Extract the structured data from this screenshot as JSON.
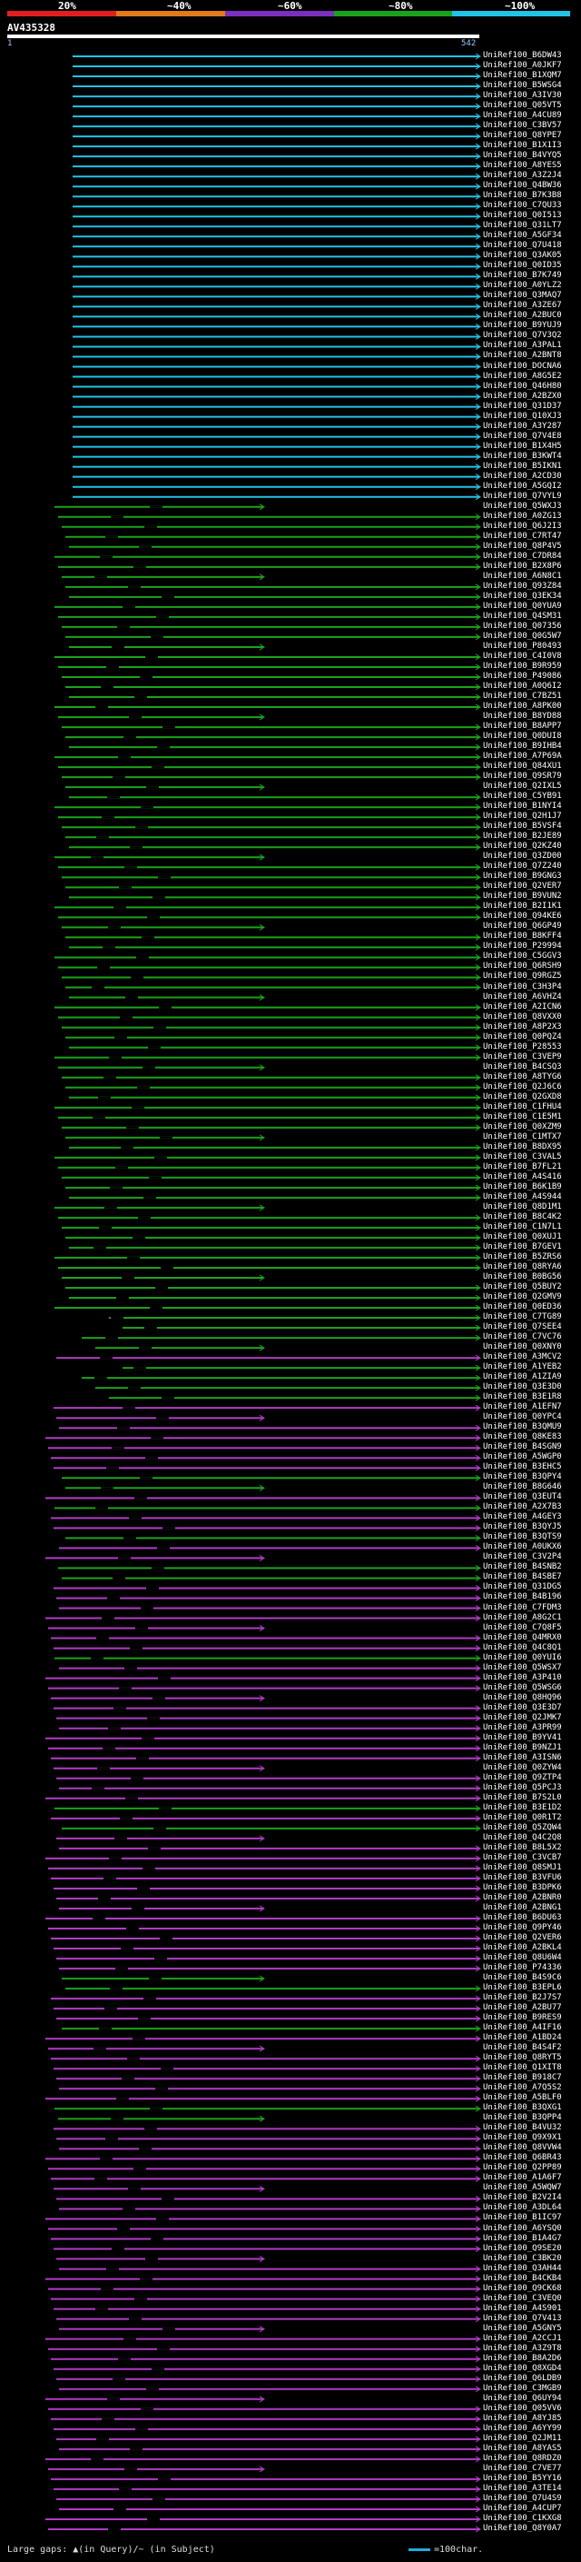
{
  "scale": {
    "ticks": [
      "20%",
      "~40%",
      "~60%",
      "~80%",
      "~100%"
    ],
    "colors": [
      "#e0201f",
      "#e07a1c",
      "#7b2fbf",
      "#1aa31a",
      "#22c3e6"
    ]
  },
  "query": {
    "name": "AV435328",
    "start": "1",
    "end": "542"
  },
  "footer": {
    "gaps_label": "Large gaps: ▲(in Query)/~ (in Subject)",
    "scale_label": "=100char."
  },
  "hits": [
    {
      "id": "UniRef100_B6DW43",
      "color": "cyan"
    },
    {
      "id": "UniRef100_A0JKF7",
      "color": "cyan"
    },
    {
      "id": "UniRef100_B1XQM7",
      "color": "cyan"
    },
    {
      "id": "UniRef100_B5WSG4",
      "color": "cyan"
    },
    {
      "id": "UniRef100_A3IV30",
      "color": "cyan"
    },
    {
      "id": "UniRef100_Q05VT5",
      "color": "cyan"
    },
    {
      "id": "UniRef100_A4CU89",
      "color": "cyan"
    },
    {
      "id": "UniRef100_C3BV57",
      "color": "cyan"
    },
    {
      "id": "UniRef100_Q8YPE7",
      "color": "cyan"
    },
    {
      "id": "UniRef100_B1X1I3",
      "color": "cyan"
    },
    {
      "id": "UniRef100_B4VYQ5",
      "color": "cyan"
    },
    {
      "id": "UniRef100_A8YES5",
      "color": "cyan"
    },
    {
      "id": "UniRef100_A3Z2J4",
      "color": "cyan"
    },
    {
      "id": "UniRef100_Q4BW36",
      "color": "cyan"
    },
    {
      "id": "UniRef100_B7K3B8",
      "color": "cyan"
    },
    {
      "id": "UniRef100_C7QU33",
      "color": "cyan"
    },
    {
      "id": "UniRef100_Q0I513",
      "color": "cyan"
    },
    {
      "id": "UniRef100_Q31LT7",
      "color": "cyan"
    },
    {
      "id": "UniRef100_A5GF34",
      "color": "cyan"
    },
    {
      "id": "UniRef100_Q7U418",
      "color": "cyan"
    },
    {
      "id": "UniRef100_Q3AK05",
      "color": "cyan"
    },
    {
      "id": "UniRef100_Q0ID35",
      "color": "cyan"
    },
    {
      "id": "UniRef100_B7K749",
      "color": "cyan"
    },
    {
      "id": "UniRef100_A0YLZ2",
      "color": "cyan"
    },
    {
      "id": "UniRef100_Q3MAQ7",
      "color": "cyan"
    },
    {
      "id": "UniRef100_A3ZE67",
      "color": "cyan"
    },
    {
      "id": "UniRef100_A2BUC0",
      "color": "cyan"
    },
    {
      "id": "UniRef100_B9YUJ9",
      "color": "cyan"
    },
    {
      "id": "UniRef100_Q7V3Q2",
      "color": "cyan"
    },
    {
      "id": "UniRef100_A3PAL1",
      "color": "cyan"
    },
    {
      "id": "UniRef100_A2BNT8",
      "color": "cyan"
    },
    {
      "id": "UniRef100_DOCNA6",
      "color": "cyan"
    },
    {
      "id": "UniRef100_A8G5E2",
      "color": "cyan"
    },
    {
      "id": "UniRef100_Q46H80",
      "color": "cyan"
    },
    {
      "id": "UniRef100_A2BZX0",
      "color": "cyan"
    },
    {
      "id": "UniRef100_Q31D37",
      "color": "cyan"
    },
    {
      "id": "UniRef100_Q10XJ3",
      "color": "cyan"
    },
    {
      "id": "UniRef100_A3Y287",
      "color": "cyan"
    },
    {
      "id": "UniRef100_Q7V4E8",
      "color": "cyan"
    },
    {
      "id": "UniRef100_B1X4H5",
      "color": "cyan"
    },
    {
      "id": "UniRef100_B3KWT4",
      "color": "cyan"
    },
    {
      "id": "UniRef100_B5IKN1",
      "color": "cyan"
    },
    {
      "id": "UniRef100_A2CD30",
      "color": "cyan"
    },
    {
      "id": "UniRef100_A5GQI2",
      "color": "cyan"
    },
    {
      "id": "UniRef100_Q7VYL9",
      "color": "cyan"
    },
    {
      "id": "UniRef100_Q5WXJ3",
      "color": "green"
    },
    {
      "id": "UniRef100_A0ZG13",
      "color": "green"
    },
    {
      "id": "UniRef100_Q6J2I3",
      "color": "green"
    },
    {
      "id": "UniRef100_C7RT47",
      "color": "green"
    },
    {
      "id": "UniRef100_Q8P4V5",
      "color": "green"
    },
    {
      "id": "UniRef100_C7DR84",
      "color": "green"
    },
    {
      "id": "UniRef100_B2X8P6",
      "color": "green"
    },
    {
      "id": "UniRef100_A6N8C1",
      "color": "green"
    },
    {
      "id": "UniRef100_Q93Z84",
      "color": "green"
    },
    {
      "id": "UniRef100_Q3EK34",
      "color": "green"
    },
    {
      "id": "UniRef100_Q0YUA9",
      "color": "green"
    },
    {
      "id": "UniRef100_Q4SM31",
      "color": "green"
    },
    {
      "id": "UniRef100_Q07356",
      "color": "green"
    },
    {
      "id": "UniRef100_Q0G5W7",
      "color": "green"
    },
    {
      "id": "UniRef100_P80493",
      "color": "green"
    },
    {
      "id": "UniRef100_C4I0V8",
      "color": "green"
    },
    {
      "id": "UniRef100_B9R959",
      "color": "green"
    },
    {
      "id": "UniRef100_P49086",
      "color": "green"
    },
    {
      "id": "UniRef100_A0Q6I2",
      "color": "green"
    },
    {
      "id": "UniRef100_C7BZ51",
      "color": "green"
    },
    {
      "id": "UniRef100_A8PK00",
      "color": "green"
    },
    {
      "id": "UniRef100_B8YD88",
      "color": "green"
    },
    {
      "id": "UniRef100_B8APP7",
      "color": "green"
    },
    {
      "id": "UniRef100_Q0DUI8",
      "color": "green"
    },
    {
      "id": "UniRef100_B9IHB4",
      "color": "green"
    },
    {
      "id": "UniRef100_A7P69A",
      "color": "green"
    },
    {
      "id": "UniRef100_Q84XU1",
      "color": "green"
    },
    {
      "id": "UniRef100_Q9SR79",
      "color": "green"
    },
    {
      "id": "UniRef100_Q2IXL5",
      "color": "green"
    },
    {
      "id": "UniRef100_C5YB91",
      "color": "green"
    },
    {
      "id": "UniRef100_B1NYI4",
      "color": "green"
    },
    {
      "id": "UniRef100_Q2H1J7",
      "color": "green"
    },
    {
      "id": "UniRef100_B5VSF4",
      "color": "green"
    },
    {
      "id": "UniRef100_B2JE89",
      "color": "green"
    },
    {
      "id": "UniRef100_Q2KZ40",
      "color": "green"
    },
    {
      "id": "UniRef100_Q3ZD00",
      "color": "green"
    },
    {
      "id": "UniRef100_Q7Z240",
      "color": "green"
    },
    {
      "id": "UniRef100_B9GNG3",
      "color": "green"
    },
    {
      "id": "UniRef100_Q2VER7",
      "color": "green"
    },
    {
      "id": "UniRef100_B9VUN2",
      "color": "green"
    },
    {
      "id": "UniRef100_B2I1K1",
      "color": "green"
    },
    {
      "id": "UniRef100_Q94KE6",
      "color": "green"
    },
    {
      "id": "UniRef100_Q6GP49",
      "color": "green"
    },
    {
      "id": "UniRef100_B8KFF4",
      "color": "green"
    },
    {
      "id": "UniRef100_P29994",
      "color": "green"
    },
    {
      "id": "UniRef100_C5GGV3",
      "color": "green"
    },
    {
      "id": "UniRef100_Q6RSH9",
      "color": "green"
    },
    {
      "id": "UniRef100_Q9RGZ5",
      "color": "green"
    },
    {
      "id": "UniRef100_C3H3P4",
      "color": "green"
    },
    {
      "id": "UniRef100_A6VHZ4",
      "color": "green"
    },
    {
      "id": "UniRef100_A2ICN6",
      "color": "green"
    },
    {
      "id": "UniRef100_Q8VXX0",
      "color": "green"
    },
    {
      "id": "UniRef100_A8P2X3",
      "color": "green"
    },
    {
      "id": "UniRef100_Q0PQZ4",
      "color": "green"
    },
    {
      "id": "UniRef100_P28553",
      "color": "green"
    },
    {
      "id": "UniRef100_C3VEP9",
      "color": "green"
    },
    {
      "id": "UniRef100_B4CSQ3",
      "color": "green"
    },
    {
      "id": "UniRef100_A8TYG6",
      "color": "green"
    },
    {
      "id": "UniRef100_Q2J6C6",
      "color": "green"
    },
    {
      "id": "UniRef100_Q2GXD8",
      "color": "green"
    },
    {
      "id": "UniRef100_C1FHU4",
      "color": "green"
    },
    {
      "id": "UniRef100_C1E5M1",
      "color": "green"
    },
    {
      "id": "UniRef100_Q0XZM9",
      "color": "green"
    },
    {
      "id": "UniRef100_C1MTX7",
      "color": "green"
    },
    {
      "id": "UniRef100_B8DX95",
      "color": "green"
    },
    {
      "id": "UniRef100_C3VAL5",
      "color": "green"
    },
    {
      "id": "UniRef100_B7FL21",
      "color": "green"
    },
    {
      "id": "UniRef100_A4S416",
      "color": "green"
    },
    {
      "id": "UniRef100_B6K1B9",
      "color": "green"
    },
    {
      "id": "UniRef100_A4S944",
      "color": "green"
    },
    {
      "id": "UniRef100_Q8D1M1",
      "color": "green"
    },
    {
      "id": "UniRef100_B8C4K2",
      "color": "green"
    },
    {
      "id": "UniRef100_C1N7L1",
      "color": "green"
    },
    {
      "id": "UniRef100_Q0XUJ1",
      "color": "green"
    },
    {
      "id": "UniRef100_B7GEV1",
      "color": "green"
    },
    {
      "id": "UniRef100_B5ZRS6",
      "color": "green"
    },
    {
      "id": "UniRef100_Q8RYA6",
      "color": "green"
    },
    {
      "id": "UniRef100_B0BG56",
      "color": "green"
    },
    {
      "id": "UniRef100_Q5BUY2",
      "color": "green"
    },
    {
      "id": "UniRef100_Q2GMV9",
      "color": "green"
    },
    {
      "id": "UniRef100_Q0ED36",
      "color": "green"
    },
    {
      "id": "UniRef100_C7TG89",
      "color": "green"
    },
    {
      "id": "UniRef100_Q7SEE4",
      "color": "green"
    },
    {
      "id": "UniRef100_C7VC76",
      "color": "green"
    },
    {
      "id": "UniRef100_Q0XNY0",
      "color": "green"
    },
    {
      "id": "UniRef100_A3MCV2",
      "color": "magenta"
    },
    {
      "id": "UniRef100_A1YEB2",
      "color": "green"
    },
    {
      "id": "UniRef100_A1ZIA9",
      "color": "green"
    },
    {
      "id": "UniRef100_Q3E3D0",
      "color": "green"
    },
    {
      "id": "UniRef100_B3E1R8",
      "color": "green"
    },
    {
      "id": "UniRef100_A1EFN7",
      "color": "magenta"
    },
    {
      "id": "UniRef100_Q0YPC4",
      "color": "magenta"
    },
    {
      "id": "UniRef100_B3QMU9",
      "color": "magenta"
    },
    {
      "id": "UniRef100_Q8KE83",
      "color": "magenta"
    },
    {
      "id": "UniRef100_B4SGN9",
      "color": "magenta"
    },
    {
      "id": "UniRef100_A5WGP0",
      "color": "magenta"
    },
    {
      "id": "UniRef100_B3EHC5",
      "color": "magenta"
    },
    {
      "id": "UniRef100_B3QPY4",
      "color": "green"
    },
    {
      "id": "UniRef100_B8G646",
      "color": "green"
    },
    {
      "id": "UniRef100_Q3EUT4",
      "color": "magenta"
    },
    {
      "id": "UniRef100_A2X7B3",
      "color": "green"
    },
    {
      "id": "UniRef100_A4GEY3",
      "color": "magenta"
    },
    {
      "id": "UniRef100_B3QYJ5",
      "color": "magenta"
    },
    {
      "id": "UniRef100_B3QTS9",
      "color": "green"
    },
    {
      "id": "UniRef100_A0UKX6",
      "color": "magenta"
    },
    {
      "id": "UniRef100_C3V2P4",
      "color": "magenta"
    },
    {
      "id": "UniRef100_B4SNB2",
      "color": "green"
    },
    {
      "id": "UniRef100_B4SBE7",
      "color": "green"
    },
    {
      "id": "UniRef100_Q31DG5",
      "color": "magenta"
    },
    {
      "id": "UniRef100_B4B196",
      "color": "magenta"
    },
    {
      "id": "UniRef100_C7FDM3",
      "color": "magenta"
    },
    {
      "id": "UniRef100_A8G2C1",
      "color": "magenta"
    },
    {
      "id": "UniRef100_C7Q8F5",
      "color": "magenta"
    },
    {
      "id": "UniRef100_Q4MRX0",
      "color": "magenta"
    },
    {
      "id": "UniRef100_Q4C8Q1",
      "color": "magenta"
    },
    {
      "id": "UniRef100_Q0YUI6",
      "color": "green"
    },
    {
      "id": "UniRef100_Q5WSX7",
      "color": "magenta"
    },
    {
      "id": "UniRef100_A3P410",
      "color": "magenta"
    },
    {
      "id": "UniRef100_Q5WSG6",
      "color": "magenta"
    },
    {
      "id": "UniRef100_Q8HQ96",
      "color": "magenta"
    },
    {
      "id": "UniRef100_Q3E3D7",
      "color": "magenta"
    },
    {
      "id": "UniRef100_Q2JMK7",
      "color": "magenta"
    },
    {
      "id": "UniRef100_A3PR99",
      "color": "magenta"
    },
    {
      "id": "UniRef100_B9YV41",
      "color": "magenta"
    },
    {
      "id": "UniRef100_B9NZJ1",
      "color": "magenta"
    },
    {
      "id": "UniRef100_A3ISN6",
      "color": "magenta"
    },
    {
      "id": "UniRef100_Q0ZYW4",
      "color": "magenta"
    },
    {
      "id": "UniRef100_Q9ZTP4",
      "color": "magenta"
    },
    {
      "id": "UniRef100_Q5PCJ3",
      "color": "magenta"
    },
    {
      "id": "UniRef100_B7S2L0",
      "color": "magenta"
    },
    {
      "id": "UniRef100_B3E1D2",
      "color": "green"
    },
    {
      "id": "UniRef100_Q0R1T2",
      "color": "magenta"
    },
    {
      "id": "UniRef100_Q5ZQW4",
      "color": "green"
    },
    {
      "id": "UniRef100_Q4C2Q8",
      "color": "magenta"
    },
    {
      "id": "UniRef100_B8L5X2",
      "color": "magenta"
    },
    {
      "id": "UniRef100_C3VCB7",
      "color": "magenta"
    },
    {
      "id": "UniRef100_Q8SMJ1",
      "color": "magenta"
    },
    {
      "id": "UniRef100_B3VFU6",
      "color": "magenta"
    },
    {
      "id": "UniRef100_B3DPK6",
      "color": "magenta"
    },
    {
      "id": "UniRef100_A2BNR0",
      "color": "magenta"
    },
    {
      "id": "UniRef100_A2BNG1",
      "color": "magenta"
    },
    {
      "id": "UniRef100_B6DU63",
      "color": "magenta"
    },
    {
      "id": "UniRef100_Q9PY46",
      "color": "magenta"
    },
    {
      "id": "UniRef100_Q2VER6",
      "color": "magenta"
    },
    {
      "id": "UniRef100_A2BKL4",
      "color": "magenta"
    },
    {
      "id": "UniRef100_Q8U6W4",
      "color": "magenta"
    },
    {
      "id": "UniRef100_P74336",
      "color": "magenta"
    },
    {
      "id": "UniRef100_B4S9C6",
      "color": "green"
    },
    {
      "id": "UniRef100_B3EPL6",
      "color": "green"
    },
    {
      "id": "UniRef100_B2J7S7",
      "color": "magenta"
    },
    {
      "id": "UniRef100_A2BU77",
      "color": "magenta"
    },
    {
      "id": "UniRef100_B9RES9",
      "color": "magenta"
    },
    {
      "id": "UniRef100_A4IF16",
      "color": "green"
    },
    {
      "id": "UniRef100_A1BD24",
      "color": "magenta"
    },
    {
      "id": "UniRef100_B4S4F2",
      "color": "magenta"
    },
    {
      "id": "UniRef100_Q8RYT5",
      "color": "magenta"
    },
    {
      "id": "UniRef100_Q1XIT8",
      "color": "magenta"
    },
    {
      "id": "UniRef100_B918C7",
      "color": "magenta"
    },
    {
      "id": "UniRef100_A7Q5S2",
      "color": "magenta"
    },
    {
      "id": "UniRef100_A5BLF0",
      "color": "magenta"
    },
    {
      "id": "UniRef100_B3QXG1",
      "color": "green"
    },
    {
      "id": "UniRef100_B3QPP4",
      "color": "green"
    },
    {
      "id": "UniRef100_B4VU32",
      "color": "magenta"
    },
    {
      "id": "UniRef100_Q9X9X1",
      "color": "magenta"
    },
    {
      "id": "UniRef100_Q8VVW4",
      "color": "magenta"
    },
    {
      "id": "UniRef100_Q6BR43",
      "color": "magenta"
    },
    {
      "id": "UniRef100_Q2PP89",
      "color": "magenta"
    },
    {
      "id": "UniRef100_A1A6F7",
      "color": "magenta"
    },
    {
      "id": "UniRef100_A5WQW7",
      "color": "magenta"
    },
    {
      "id": "UniRef100_B2V2I4",
      "color": "magenta"
    },
    {
      "id": "UniRef100_A3DL64",
      "color": "magenta"
    },
    {
      "id": "UniRef100_B1IC97",
      "color": "magenta"
    },
    {
      "id": "UniRef100_A6YSQ0",
      "color": "magenta"
    },
    {
      "id": "UniRef100_B1A4G7",
      "color": "magenta"
    },
    {
      "id": "UniRef100_Q9SE20",
      "color": "magenta"
    },
    {
      "id": "UniRef100_C3BK20",
      "color": "magenta"
    },
    {
      "id": "UniRef100_Q3AH44",
      "color": "magenta"
    },
    {
      "id": "UniRef100_B4CKB4",
      "color": "magenta"
    },
    {
      "id": "UniRef100_Q9CK68",
      "color": "magenta"
    },
    {
      "id": "UniRef100_C3VEQ0",
      "color": "magenta"
    },
    {
      "id": "UniRef100_A4S901",
      "color": "magenta"
    },
    {
      "id": "UniRef100_Q7V413",
      "color": "magenta"
    },
    {
      "id": "UniRef100_A5GNY5",
      "color": "magenta"
    },
    {
      "id": "UniRef100_A2CCJ1",
      "color": "magenta"
    },
    {
      "id": "UniRef100_A3Z9T8",
      "color": "magenta"
    },
    {
      "id": "UniRef100_B8A2D6",
      "color": "magenta"
    },
    {
      "id": "UniRef100_Q8XGD4",
      "color": "magenta"
    },
    {
      "id": "UniRef100_Q6LDB9",
      "color": "magenta"
    },
    {
      "id": "UniRef100_C3MGB9",
      "color": "magenta"
    },
    {
      "id": "UniRef100_Q6UY94",
      "color": "magenta"
    },
    {
      "id": "UniRef100_Q05VV6",
      "color": "magenta"
    },
    {
      "id": "UniRef100_A8YJ85",
      "color": "magenta"
    },
    {
      "id": "UniRef100_A6YY99",
      "color": "magenta"
    },
    {
      "id": "UniRef100_Q2JM11",
      "color": "magenta"
    },
    {
      "id": "UniRef100_A8YAS5",
      "color": "magenta"
    },
    {
      "id": "UniRef100_Q8RDZ0",
      "color": "magenta"
    },
    {
      "id": "UniRef100_C7VE77",
      "color": "magenta"
    },
    {
      "id": "UniRef100_B5YY16",
      "color": "magenta"
    },
    {
      "id": "UniRef100_A3TE14",
      "color": "magenta"
    },
    {
      "id": "UniRef100_Q7U4S9",
      "color": "magenta"
    },
    {
      "id": "UniRef100_A4CUP7",
      "color": "magenta"
    },
    {
      "id": "UniRef100_C1KXG8",
      "color": "magenta"
    },
    {
      "id": "UniRef100_Q8Y0A7",
      "color": "magenta"
    }
  ]
}
